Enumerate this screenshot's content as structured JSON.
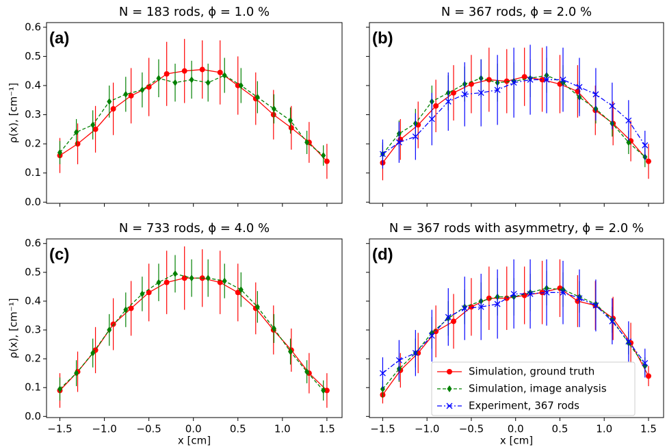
{
  "chart_data": [
    {
      "type": "errorbar",
      "title": "N = 183 rods, ϕ = 1.0 %",
      "panel_label": "(a)",
      "ylabel": "ρ(x), [cm⁻¹]",
      "xlim": [
        -1.65,
        1.67
      ],
      "ylim": [
        -0.004,
        0.616
      ],
      "yticks": [
        {
          "value": 0,
          "label": "0.0"
        },
        {
          "value": 0.1,
          "label": "0.1"
        },
        {
          "value": 0.2,
          "label": "0.2"
        },
        {
          "value": 0.3,
          "label": "0.3"
        },
        {
          "value": 0.4,
          "label": "0.4"
        },
        {
          "value": 0.5,
          "label": "0.5"
        },
        {
          "value": 0.6,
          "label": "0.6"
        }
      ],
      "series": [
        {
          "color": "#ff0000",
          "marker": "circle",
          "linestyle": "solid",
          "x": [
            -1.5,
            -1.3,
            -1.1,
            -0.9,
            -0.7,
            -0.5,
            -0.3,
            -0.1,
            0.1,
            0.3,
            0.5,
            0.7,
            0.9,
            1.1,
            1.3,
            1.5
          ],
          "values": [
            0.16,
            0.2,
            0.25,
            0.32,
            0.365,
            0.395,
            0.44,
            0.45,
            0.455,
            0.445,
            0.4,
            0.355,
            0.3,
            0.255,
            0.205,
            0.14
          ],
          "errors": [
            0.06,
            0.07,
            0.08,
            0.09,
            0.095,
            0.1,
            0.11,
            0.11,
            0.1,
            0.11,
            0.1,
            0.09,
            0.085,
            0.075,
            0.07,
            0.06
          ]
        },
        {
          "color": "#008000",
          "marker": "diamond",
          "linestyle": "dashed",
          "x": [
            -1.5,
            -1.315,
            -1.13,
            -0.945,
            -0.76,
            -0.575,
            -0.39,
            -0.205,
            -0.02,
            0.165,
            0.35,
            0.535,
            0.72,
            0.905,
            1.09,
            1.275,
            1.46
          ],
          "values": [
            0.17,
            0.24,
            0.265,
            0.345,
            0.37,
            0.385,
            0.425,
            0.41,
            0.42,
            0.41,
            0.435,
            0.4,
            0.36,
            0.32,
            0.28,
            0.205,
            0.16
          ],
          "errors": [
            0.04,
            0.045,
            0.05,
            0.055,
            0.06,
            0.06,
            0.065,
            0.065,
            0.065,
            0.065,
            0.06,
            0.06,
            0.055,
            0.05,
            0.045,
            0.04,
            0.035
          ]
        }
      ]
    },
    {
      "type": "errorbar",
      "title": "N = 367 rods, ϕ = 2.0 %",
      "panel_label": "(b)",
      "xlim": [
        -1.65,
        1.67
      ],
      "ylim": [
        -0.004,
        0.616
      ],
      "series": [
        {
          "color": "#ff0000",
          "marker": "circle",
          "linestyle": "solid",
          "x": [
            -1.5,
            -1.3,
            -1.1,
            -0.9,
            -0.7,
            -0.5,
            -0.3,
            -0.1,
            0.1,
            0.3,
            0.5,
            0.7,
            0.9,
            1.1,
            1.3,
            1.5
          ],
          "values": [
            0.135,
            0.215,
            0.265,
            0.33,
            0.375,
            0.405,
            0.42,
            0.415,
            0.43,
            0.42,
            0.405,
            0.38,
            0.315,
            0.27,
            0.21,
            0.14
          ],
          "errors": [
            0.06,
            0.07,
            0.08,
            0.09,
            0.095,
            0.1,
            0.11,
            0.11,
            0.1,
            0.11,
            0.1,
            0.09,
            0.085,
            0.075,
            0.07,
            0.06
          ]
        },
        {
          "color": "#008000",
          "marker": "diamond",
          "linestyle": "dashed",
          "x": [
            -1.5,
            -1.315,
            -1.13,
            -0.945,
            -0.76,
            -0.575,
            -0.39,
            -0.205,
            -0.02,
            0.165,
            0.35,
            0.535,
            0.72,
            0.905,
            1.09,
            1.275,
            1.46
          ],
          "values": [
            0.165,
            0.235,
            0.27,
            0.345,
            0.375,
            0.405,
            0.425,
            0.41,
            0.415,
            0.425,
            0.435,
            0.41,
            0.36,
            0.32,
            0.27,
            0.205,
            0.155
          ],
          "errors": [
            0.04,
            0.045,
            0.05,
            0.055,
            0.06,
            0.06,
            0.065,
            0.065,
            0.065,
            0.065,
            0.06,
            0.06,
            0.055,
            0.05,
            0.045,
            0.04,
            0.035
          ]
        },
        {
          "color": "#0000ff",
          "marker": "x",
          "linestyle": "dashdot",
          "x": [
            -1.5,
            -1.315,
            -1.13,
            -0.945,
            -0.76,
            -0.575,
            -0.39,
            -0.205,
            -0.02,
            0.165,
            0.35,
            0.535,
            0.72,
            0.905,
            1.09,
            1.275,
            1.46
          ],
          "values": [
            0.165,
            0.205,
            0.225,
            0.285,
            0.345,
            0.37,
            0.375,
            0.385,
            0.41,
            0.42,
            0.42,
            0.42,
            0.395,
            0.37,
            0.33,
            0.28,
            0.195
          ],
          "errors": [
            0.05,
            0.07,
            0.08,
            0.09,
            0.1,
            0.11,
            0.115,
            0.12,
            0.12,
            0.12,
            0.115,
            0.11,
            0.1,
            0.09,
            0.08,
            0.07,
            0.05
          ]
        }
      ]
    },
    {
      "type": "errorbar",
      "title": "N = 733 rods, ϕ = 4.0 %",
      "panel_label": "(c)",
      "ylabel": "ρ(x), [cm⁻¹]",
      "xlabel": "x [cm]",
      "xlim": [
        -1.65,
        1.67
      ],
      "ylim": [
        -0.004,
        0.616
      ],
      "xticks": [
        {
          "value": -1.5,
          "label": "−1.5"
        },
        {
          "value": -1,
          "label": "−1.0"
        },
        {
          "value": -0.5,
          "label": "−0.5"
        },
        {
          "value": 0,
          "label": "0.0"
        },
        {
          "value": 0.5,
          "label": "0.5"
        },
        {
          "value": 1,
          "label": "1.0"
        },
        {
          "value": 1.5,
          "label": "1.5"
        }
      ],
      "yticks": [
        {
          "value": 0,
          "label": "0.0"
        },
        {
          "value": 0.1,
          "label": "0.1"
        },
        {
          "value": 0.2,
          "label": "0.2"
        },
        {
          "value": 0.3,
          "label": "0.3"
        },
        {
          "value": 0.4,
          "label": "0.4"
        },
        {
          "value": 0.5,
          "label": "0.5"
        },
        {
          "value": 0.6,
          "label": "0.6"
        }
      ],
      "series": [
        {
          "color": "#ff0000",
          "marker": "circle",
          "linestyle": "solid",
          "x": [
            -1.5,
            -1.3,
            -1.1,
            -0.9,
            -0.7,
            -0.5,
            -0.3,
            -0.1,
            0.1,
            0.3,
            0.5,
            0.7,
            0.9,
            1.1,
            1.3,
            1.5
          ],
          "values": [
            0.09,
            0.155,
            0.23,
            0.32,
            0.375,
            0.43,
            0.465,
            0.48,
            0.48,
            0.465,
            0.43,
            0.375,
            0.3,
            0.23,
            0.15,
            0.09
          ],
          "errors": [
            0.06,
            0.07,
            0.08,
            0.09,
            0.095,
            0.1,
            0.11,
            0.11,
            0.1,
            0.11,
            0.1,
            0.09,
            0.085,
            0.075,
            0.07,
            0.06
          ]
        },
        {
          "color": "#008000",
          "marker": "diamond",
          "linestyle": "dashed",
          "x": [
            -1.5,
            -1.315,
            -1.13,
            -0.945,
            -0.76,
            -0.575,
            -0.39,
            -0.205,
            -0.02,
            0.165,
            0.35,
            0.535,
            0.72,
            0.905,
            1.09,
            1.275,
            1.46
          ],
          "values": [
            0.095,
            0.15,
            0.22,
            0.3,
            0.37,
            0.425,
            0.465,
            0.495,
            0.48,
            0.48,
            0.47,
            0.44,
            0.38,
            0.305,
            0.225,
            0.155,
            0.09
          ],
          "errors": [
            0.04,
            0.045,
            0.05,
            0.055,
            0.06,
            0.06,
            0.065,
            0.065,
            0.065,
            0.065,
            0.06,
            0.06,
            0.055,
            0.05,
            0.045,
            0.04,
            0.035
          ]
        }
      ]
    },
    {
      "type": "errorbar",
      "title": "N = 367 rods with asymmetry, ϕ = 2.0 %",
      "panel_label": "(d)",
      "xlabel": "x [cm]",
      "xlim": [
        -1.65,
        1.67
      ],
      "ylim": [
        -0.004,
        0.616
      ],
      "xticks": [
        {
          "value": -1.5,
          "label": "−1.5"
        },
        {
          "value": -1,
          "label": "−1.0"
        },
        {
          "value": -0.5,
          "label": "−0.5"
        },
        {
          "value": 0,
          "label": "0.0"
        },
        {
          "value": 0.5,
          "label": "0.5"
        },
        {
          "value": 1,
          "label": "1.0"
        },
        {
          "value": 1.5,
          "label": "1.5"
        }
      ],
      "legend": "lower right",
      "series": [
        {
          "name": "Simulation, ground truth",
          "color": "#ff0000",
          "marker": "circle",
          "linestyle": "solid",
          "x": [
            -1.5,
            -1.3,
            -1.1,
            -0.9,
            -0.7,
            -0.5,
            -0.3,
            -0.1,
            0.1,
            0.3,
            0.5,
            0.7,
            0.9,
            1.1,
            1.3,
            1.5
          ],
          "values": [
            0.075,
            0.16,
            0.22,
            0.295,
            0.33,
            0.38,
            0.41,
            0.41,
            0.42,
            0.43,
            0.445,
            0.4,
            0.385,
            0.34,
            0.255,
            0.14
          ],
          "errors": [
            0.03,
            0.06,
            0.07,
            0.09,
            0.095,
            0.1,
            0.11,
            0.11,
            0.1,
            0.11,
            0.1,
            0.09,
            0.085,
            0.075,
            0.07,
            0.035
          ]
        },
        {
          "name": "Simulation, image analysis",
          "color": "#008000",
          "marker": "diamond",
          "linestyle": "dashed",
          "x": [
            -1.5,
            -1.315,
            -1.13,
            -0.945,
            -0.76,
            -0.575,
            -0.39,
            -0.205,
            -0.02,
            0.165,
            0.35,
            0.535,
            0.72,
            0.905,
            1.09,
            1.275,
            1.46
          ],
          "values": [
            0.095,
            0.165,
            0.22,
            0.29,
            0.34,
            0.38,
            0.4,
            0.415,
            0.415,
            0.43,
            0.445,
            0.44,
            0.415,
            0.39,
            0.335,
            0.255,
            0.175
          ],
          "errors": [
            0.03,
            0.045,
            0.05,
            0.055,
            0.06,
            0.06,
            0.065,
            0.065,
            0.065,
            0.065,
            0.06,
            0.06,
            0.055,
            0.05,
            0.045,
            0.04,
            0.03
          ]
        },
        {
          "name": "Experiment, 367 rods",
          "color": "#0000ff",
          "marker": "x",
          "linestyle": "dashdot",
          "x": [
            -1.5,
            -1.315,
            -1.13,
            -0.945,
            -0.76,
            -0.575,
            -0.39,
            -0.205,
            -0.02,
            0.165,
            0.35,
            0.535,
            0.72,
            0.905,
            1.09,
            1.275,
            1.46
          ],
          "values": [
            0.15,
            0.195,
            0.22,
            0.28,
            0.345,
            0.375,
            0.38,
            0.39,
            0.425,
            0.425,
            0.43,
            0.43,
            0.41,
            0.385,
            0.33,
            0.26,
            0.185
          ],
          "errors": [
            0.055,
            0.07,
            0.08,
            0.09,
            0.1,
            0.11,
            0.115,
            0.12,
            0.12,
            0.12,
            0.115,
            0.11,
            0.1,
            0.09,
            0.08,
            0.07,
            0.05
          ]
        }
      ]
    }
  ]
}
